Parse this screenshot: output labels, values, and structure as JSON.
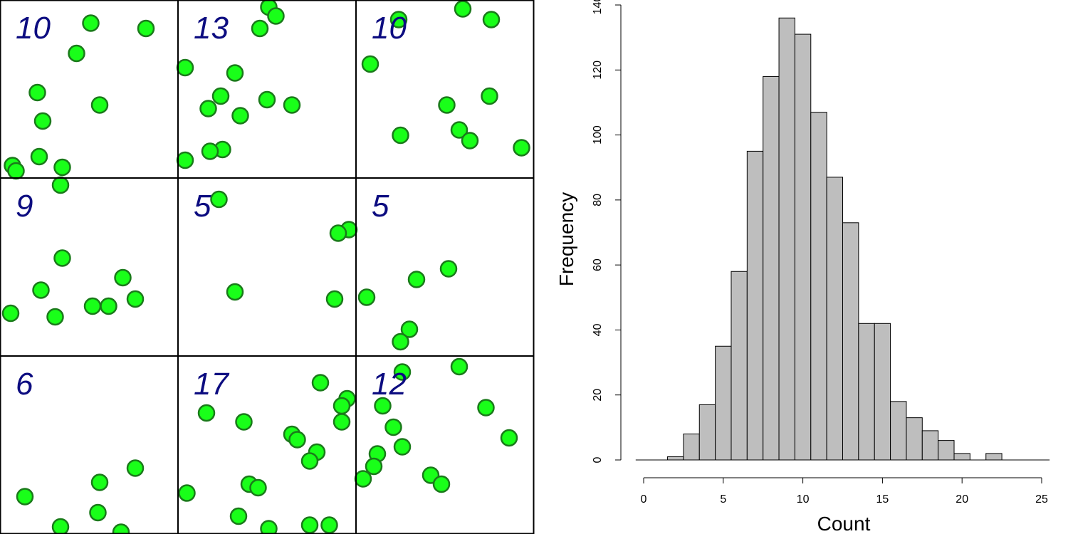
{
  "chart_data": [
    {
      "type": "scatter",
      "grid": "3x3",
      "x_range": [
        0,
        10
      ],
      "y_range": [
        0,
        10
      ],
      "point_color": "#19ff19",
      "point_edge_color": "#1a7a1a",
      "label_color": "#0c0c80",
      "panels": [
        {
          "label": "10",
          "points": [
            [
              5.1,
              8.7
            ],
            [
              8.2,
              8.4
            ],
            [
              4.3,
              7.0
            ],
            [
              2.1,
              4.8
            ],
            [
              5.6,
              4.1
            ],
            [
              2.4,
              3.2
            ],
            [
              2.2,
              1.2
            ],
            [
              0.7,
              0.7
            ],
            [
              3.5,
              0.6
            ],
            [
              0.9,
              0.4
            ]
          ]
        },
        {
          "label": "13",
          "points": [
            [
              5.1,
              9.6
            ],
            [
              5.5,
              9.1
            ],
            [
              4.6,
              8.4
            ],
            [
              0.4,
              6.2
            ],
            [
              3.2,
              5.9
            ],
            [
              2.4,
              4.6
            ],
            [
              5.0,
              4.4
            ],
            [
              6.4,
              4.1
            ],
            [
              1.7,
              3.9
            ],
            [
              3.5,
              3.5
            ],
            [
              2.5,
              1.6
            ],
            [
              1.8,
              1.5
            ],
            [
              0.4,
              1.0
            ]
          ]
        },
        {
          "label": "10",
          "points": [
            [
              6.0,
              9.5
            ],
            [
              7.6,
              8.9
            ],
            [
              0.8,
              6.4
            ],
            [
              7.5,
              4.6
            ],
            [
              5.1,
              4.1
            ],
            [
              2.5,
              2.4
            ],
            [
              5.8,
              2.7
            ],
            [
              6.4,
              2.1
            ],
            [
              9.3,
              1.7
            ],
            [
              2.4,
              8.9
            ]
          ]
        },
        {
          "label": "9",
          "points": [
            [
              3.4,
              9.6
            ],
            [
              3.5,
              5.5
            ],
            [
              6.9,
              4.4
            ],
            [
              2.3,
              3.7
            ],
            [
              7.6,
              3.2
            ],
            [
              0.6,
              2.4
            ],
            [
              5.2,
              2.8
            ],
            [
              6.1,
              2.8
            ],
            [
              3.1,
              2.2
            ]
          ]
        },
        {
          "label": "5",
          "points": [
            [
              2.3,
              8.8
            ],
            [
              9.6,
              7.1
            ],
            [
              9.0,
              6.9
            ],
            [
              3.2,
              3.6
            ],
            [
              8.8,
              3.2
            ]
          ]
        },
        {
          "label": "5",
          "points": [
            [
              5.2,
              4.9
            ],
            [
              3.4,
              4.3
            ],
            [
              0.6,
              3.3
            ],
            [
              3.0,
              1.5
            ],
            [
              2.5,
              0.8
            ]
          ]
        },
        {
          "label": "6",
          "points": [
            [
              7.6,
              3.7
            ],
            [
              5.6,
              2.9
            ],
            [
              1.4,
              2.1
            ],
            [
              5.5,
              1.2
            ],
            [
              3.4,
              0.4
            ],
            [
              6.8,
              0.1
            ]
          ]
        },
        {
          "label": "17",
          "points": [
            [
              8.0,
              8.5
            ],
            [
              9.5,
              7.6
            ],
            [
              9.2,
              7.2
            ],
            [
              1.6,
              6.8
            ],
            [
              3.7,
              6.3
            ],
            [
              9.2,
              6.3
            ],
            [
              6.4,
              5.6
            ],
            [
              6.7,
              5.3
            ],
            [
              7.8,
              4.6
            ],
            [
              7.4,
              4.1
            ],
            [
              4.0,
              2.8
            ],
            [
              4.5,
              2.6
            ],
            [
              0.5,
              2.3
            ],
            [
              3.4,
              1.0
            ],
            [
              7.4,
              0.5
            ],
            [
              8.5,
              0.5
            ],
            [
              5.1,
              0.3
            ]
          ]
        },
        {
          "label": "12",
          "points": [
            [
              5.8,
              9.4
            ],
            [
              2.6,
              9.1
            ],
            [
              7.3,
              7.1
            ],
            [
              1.5,
              7.2
            ],
            [
              2.1,
              6.0
            ],
            [
              8.6,
              5.4
            ],
            [
              2.6,
              4.9
            ],
            [
              1.2,
              4.5
            ],
            [
              1.0,
              3.8
            ],
            [
              4.2,
              3.3
            ],
            [
              4.8,
              2.8
            ],
            [
              0.4,
              3.1
            ]
          ]
        }
      ]
    },
    {
      "type": "bar",
      "subtype": "histogram",
      "xlabel": "Count",
      "ylabel": "Frequency",
      "xlim": [
        0,
        25
      ],
      "ylim": [
        0,
        140
      ],
      "x_ticks": [
        0,
        5,
        10,
        15,
        20,
        25
      ],
      "y_ticks": [
        0,
        20,
        40,
        60,
        80,
        100,
        120,
        140
      ],
      "bin_width": 1,
      "bin_edges_start": 1.5,
      "categories": [
        2,
        3,
        4,
        5,
        6,
        7,
        8,
        9,
        10,
        11,
        12,
        13,
        14,
        15,
        16,
        17,
        18,
        19,
        20,
        21,
        22
      ],
      "values": [
        1,
        8,
        17,
        35,
        58,
        95,
        118,
        136,
        131,
        107,
        87,
        73,
        42,
        42,
        18,
        13,
        9,
        6,
        2,
        0,
        2
      ],
      "bar_color": "#bebebe"
    }
  ]
}
